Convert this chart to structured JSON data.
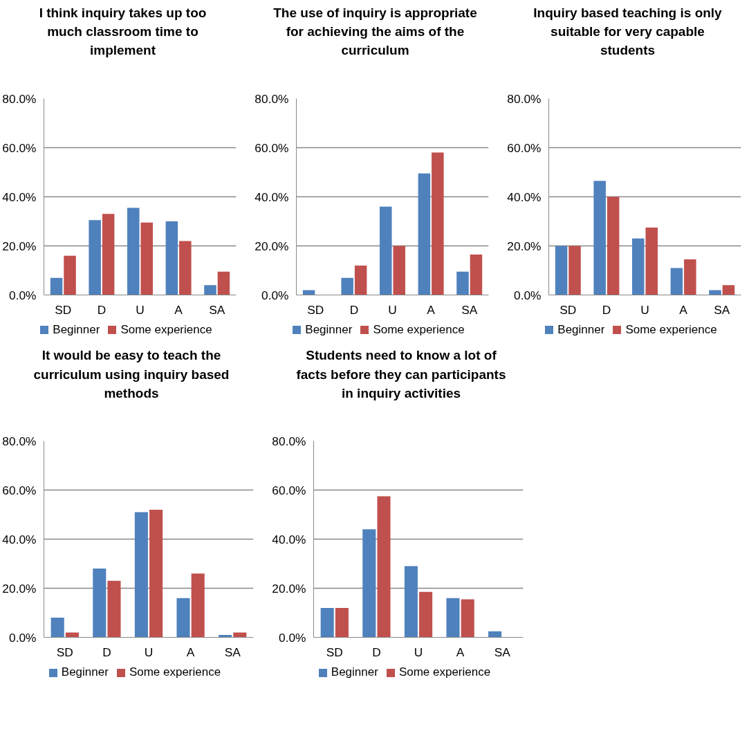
{
  "chart_data": [
    {
      "type": "bar",
      "title": "I think inquiry takes up too much classroom time to implement",
      "categories": [
        "SD",
        "D",
        "U",
        "A",
        "SA"
      ],
      "series": [
        {
          "name": "Beginner",
          "color": "#4f81bd",
          "values": [
            7,
            30.5,
            35.5,
            30,
            4
          ]
        },
        {
          "name": "Some experience",
          "color": "#c0504d",
          "values": [
            16,
            33,
            29.5,
            22,
            9.5
          ]
        }
      ],
      "ylim": [
        0,
        80
      ],
      "yticks": [
        {
          "value": 0,
          "label": "0.0%"
        },
        {
          "value": 20,
          "label": "20.0%"
        },
        {
          "value": 40,
          "label": "40.0%"
        },
        {
          "value": 60,
          "label": "60.0%"
        },
        {
          "value": 80,
          "label": "80.0%"
        }
      ],
      "grid": "y",
      "legend": "bottom"
    },
    {
      "type": "bar",
      "title": "The use of inquiry is appropriate for achieving the aims of the curriculum",
      "categories": [
        "SD",
        "D",
        "U",
        "A",
        "SA"
      ],
      "series": [
        {
          "name": "Beginner",
          "color": "#4f81bd",
          "values": [
            2,
            7,
            36,
            49.5,
            9.5
          ]
        },
        {
          "name": "Some experience",
          "color": "#c0504d",
          "values": [
            0,
            12,
            20,
            58,
            16.5
          ]
        }
      ],
      "ylim": [
        0,
        80
      ],
      "yticks": [
        {
          "value": 0,
          "label": "0.0%"
        },
        {
          "value": 20,
          "label": "20.0%"
        },
        {
          "value": 40,
          "label": "40.0%"
        },
        {
          "value": 60,
          "label": "60.0%"
        },
        {
          "value": 80,
          "label": "80.0%"
        }
      ],
      "grid": "y",
      "legend": "bottom"
    },
    {
      "type": "bar",
      "title": "Inquiry based teaching is only suitable for very capable students",
      "categories": [
        "SD",
        "D",
        "U",
        "A",
        "SA"
      ],
      "series": [
        {
          "name": "Beginner",
          "color": "#4f81bd",
          "values": [
            20,
            46.5,
            23,
            11,
            2
          ]
        },
        {
          "name": "Some experience",
          "color": "#c0504d",
          "values": [
            20,
            40,
            27.5,
            14.5,
            4
          ]
        }
      ],
      "ylim": [
        0,
        80
      ],
      "yticks": [
        {
          "value": 0,
          "label": "0.0%"
        },
        {
          "value": 20,
          "label": "20.0%"
        },
        {
          "value": 40,
          "label": "40.0%"
        },
        {
          "value": 60,
          "label": "60.0%"
        },
        {
          "value": 80,
          "label": "80.0%"
        }
      ],
      "grid": "y",
      "legend": "bottom"
    },
    {
      "type": "bar",
      "title": "It would be easy to teach the curriculum using inquiry based methods",
      "categories": [
        "SD",
        "D",
        "U",
        "A",
        "SA"
      ],
      "series": [
        {
          "name": "Beginner",
          "color": "#4f81bd",
          "values": [
            8,
            28,
            51,
            16,
            1
          ]
        },
        {
          "name": "Some experience",
          "color": "#c0504d",
          "values": [
            2,
            23,
            52,
            26,
            2
          ]
        }
      ],
      "ylim": [
        0,
        80
      ],
      "yticks": [
        {
          "value": 0,
          "label": "0.0%"
        },
        {
          "value": 20,
          "label": "20.0%"
        },
        {
          "value": 40,
          "label": "40.0%"
        },
        {
          "value": 60,
          "label": "60.0%"
        },
        {
          "value": 80,
          "label": "80.0%"
        }
      ],
      "grid": "y",
      "legend": "bottom"
    },
    {
      "type": "bar",
      "title": "Students need to know a lot of facts before they can participants in inquiry activities",
      "categories": [
        "SD",
        "D",
        "U",
        "A",
        "SA"
      ],
      "series": [
        {
          "name": "Beginner",
          "color": "#4f81bd",
          "values": [
            12,
            44,
            29,
            16,
            2.5
          ]
        },
        {
          "name": "Some experience",
          "color": "#c0504d",
          "values": [
            12,
            57.5,
            18.5,
            15.5,
            0
          ]
        }
      ],
      "ylim": [
        0,
        80
      ],
      "yticks": [
        {
          "value": 0,
          "label": "0.0%"
        },
        {
          "value": 20,
          "label": "20.0%"
        },
        {
          "value": 40,
          "label": "40.0%"
        },
        {
          "value": 60,
          "label": "60.0%"
        },
        {
          "value": 80,
          "label": "80.0%"
        }
      ],
      "grid": "y",
      "legend": "bottom"
    }
  ]
}
